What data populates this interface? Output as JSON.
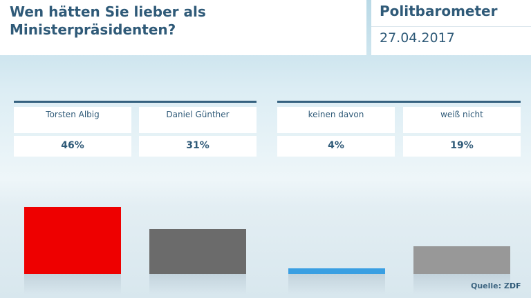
{
  "chart_data": {
    "type": "bar",
    "title": "Wen hätten Sie lieber als Ministerpräsidenten?",
    "brand": "Politbarometer",
    "date": "27.04.2017",
    "categories": [
      "Torsten Albig",
      "Daniel Günther",
      "keinen davon",
      "weiß nicht"
    ],
    "values": [
      46,
      31,
      4,
      19
    ],
    "value_labels": [
      "46%",
      "31%",
      "4%",
      "19%"
    ],
    "colors": [
      "#ee0000",
      "#6b6b6b",
      "#3a9fe2",
      "#989898"
    ],
    "source": "Quelle: ZDF"
  }
}
